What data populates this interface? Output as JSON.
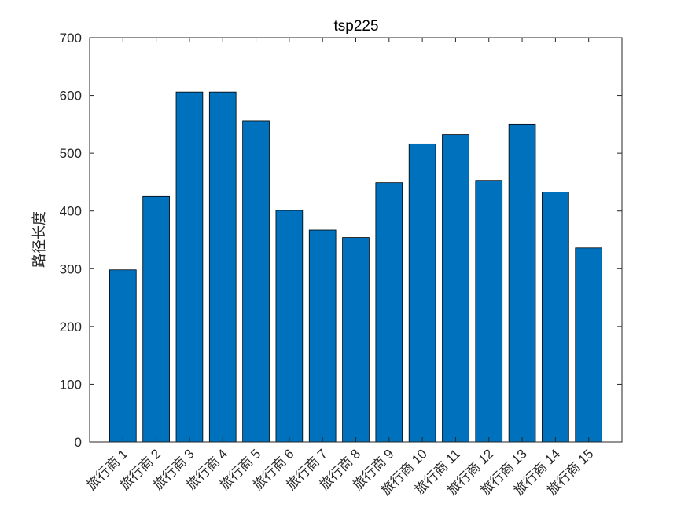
{
  "chart_data": {
    "type": "bar",
    "title": "tsp225",
    "xlabel": "",
    "ylabel": "路径长度",
    "categories": [
      "旅行商 1",
      "旅行商 2",
      "旅行商 3",
      "旅行商 4",
      "旅行商 5",
      "旅行商 6",
      "旅行商 7",
      "旅行商 8",
      "旅行商 9",
      "旅行商 10",
      "旅行商 11",
      "旅行商 12",
      "旅行商 13",
      "旅行商 14",
      "旅行商 15"
    ],
    "values": [
      298,
      425,
      606,
      606,
      556,
      401,
      367,
      354,
      449,
      516,
      532,
      453,
      550,
      433,
      336
    ],
    "ylim": [
      0,
      700
    ],
    "yticks": [
      0,
      100,
      200,
      300,
      400,
      500,
      600,
      700
    ],
    "grid": false,
    "bar_color": "#0072BD",
    "bar_edge_color": "#000000"
  }
}
